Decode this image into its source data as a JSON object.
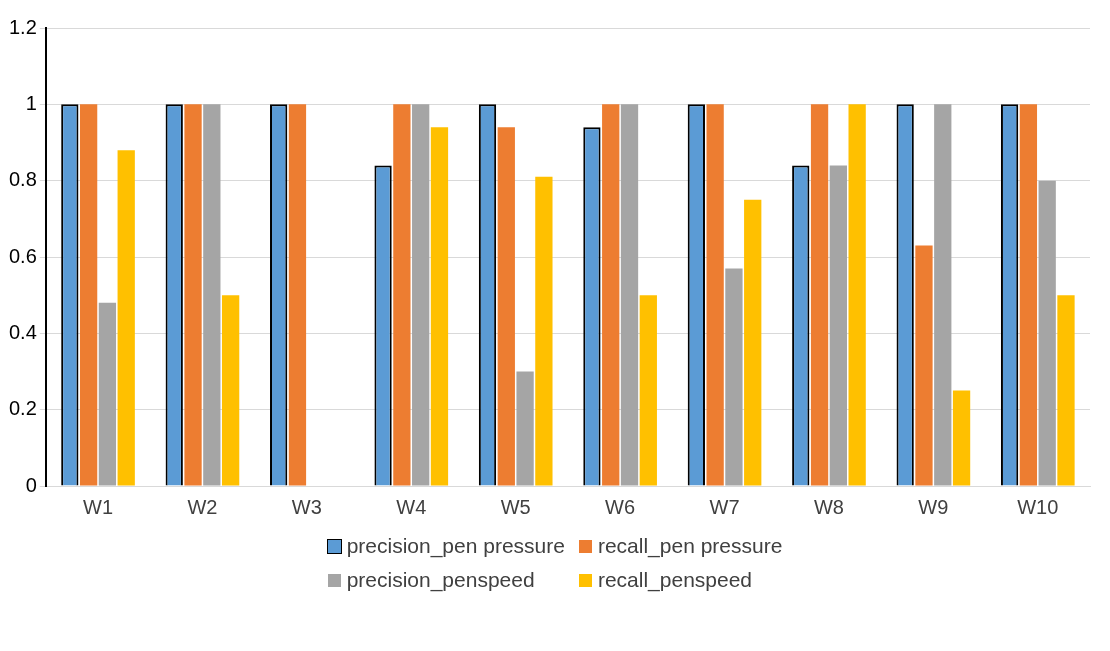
{
  "chart_data": {
    "type": "bar",
    "categories": [
      "W1",
      "W2",
      "W3",
      "W4",
      "W5",
      "W6",
      "W7",
      "W8",
      "W9",
      "W10"
    ],
    "series": [
      {
        "name": "precision_pen pressure",
        "color": "#5b9bd5",
        "values": [
          1,
          1,
          1,
          0.84,
          1,
          0.94,
          1,
          0.84,
          1,
          1
        ]
      },
      {
        "name": "recall_pen pressure",
        "color": "#ed7d31",
        "values": [
          1,
          1,
          1,
          1,
          0.94,
          1,
          1,
          1,
          0.63,
          1
        ]
      },
      {
        "name": "precision_penspeed",
        "color": "#a5a5a5",
        "values": [
          0.48,
          1,
          0,
          1,
          0.3,
          1,
          0.57,
          0.84,
          1,
          0.8
        ]
      },
      {
        "name": "recall_penspeed",
        "color": "#ffc000",
        "values": [
          0.88,
          0.5,
          0,
          0.94,
          0.81,
          0.5,
          0.75,
          1,
          0.25,
          0.5
        ]
      }
    ],
    "ylim": [
      0,
      1.2
    ],
    "yticks": [
      0,
      0.2,
      0.4,
      0.6,
      0.8,
      1,
      1.2
    ],
    "grid": "y",
    "legend": "bottom"
  }
}
